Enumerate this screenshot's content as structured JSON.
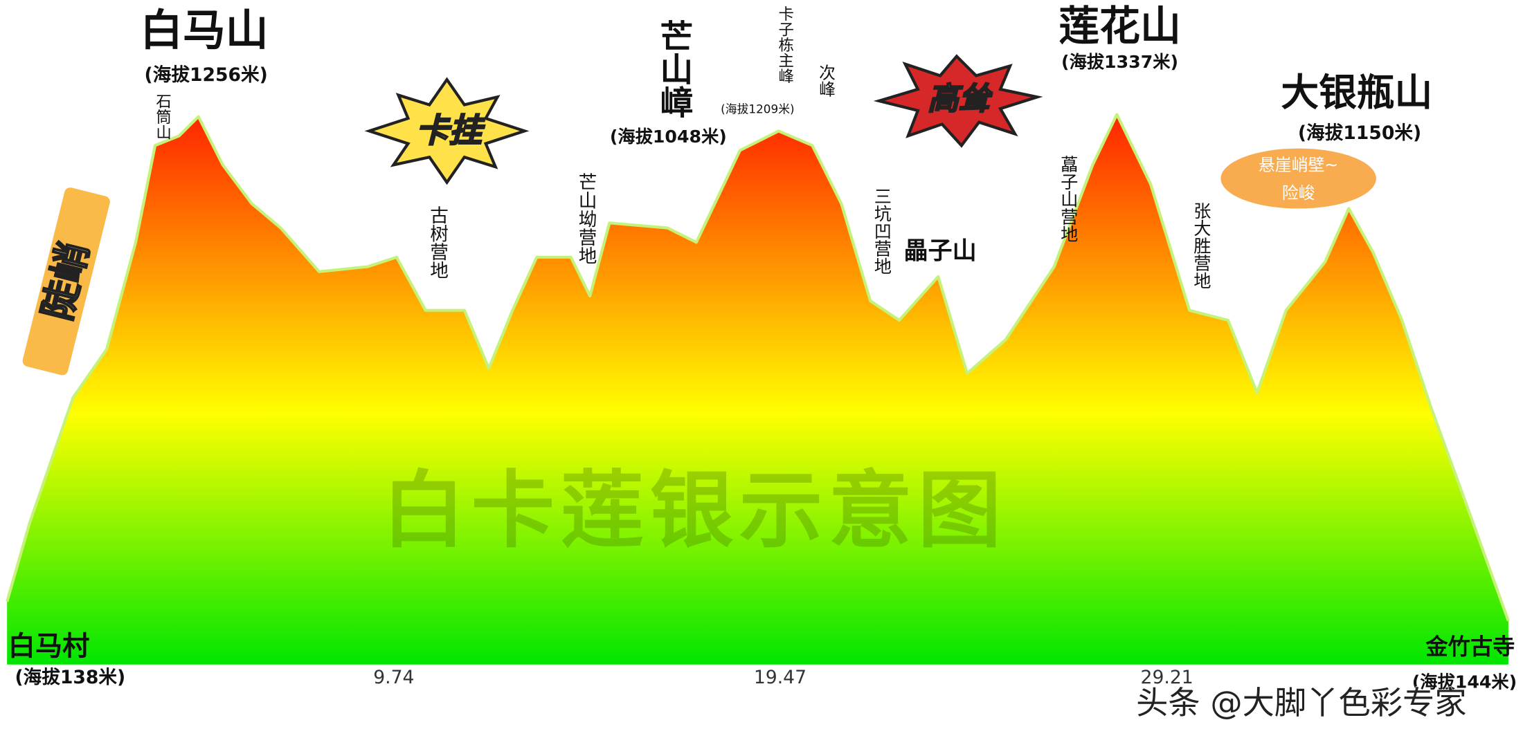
{
  "chart_data": {
    "type": "area",
    "title": "白卡莲银示意图",
    "x": [
      0,
      0.56,
      1.66,
      2.51,
      3.24,
      3.73,
      4.33,
      4.82,
      5.43,
      6.16,
      6.89,
      7.86,
      9.08,
      9.81,
      10.54,
      11.52,
      12.13,
      12.73,
      13.34,
      14.2,
      14.68,
      15.17,
      16.63,
      17.36,
      18.46,
      19.43,
      20.28,
      21.01,
      21.74,
      22.47,
      23.45,
      24.18,
      25.15,
      26.37,
      27.34,
      27.95,
      28.8,
      29.78,
      30.75,
      31.48,
      32.21,
      33.19,
      33.79,
      34.4,
      35.13,
      35.86,
      36.84,
      37.81
    ],
    "values": [
      153,
      341,
      647,
      765,
      1024,
      1259,
      1282,
      1329,
      1212,
      1118,
      1059,
      953,
      965,
      988,
      859,
      859,
      718,
      859,
      988,
      988,
      894,
      1071,
      1059,
      1024,
      1247,
      1294,
      1259,
      1118,
      882,
      835,
      941,
      706,
      788,
      965,
      1212,
      1334,
      1165,
      859,
      835,
      659,
      859,
      976,
      1106,
      1000,
      835,
      624,
      365,
      106
    ],
    "xlim": [
      0,
      38
    ],
    "ylim": [
      0,
      1400
    ],
    "xticks": [
      9.74,
      19.47,
      29.21
    ],
    "colors": [
      "#ff1e00",
      "#ff9900",
      "#ffff00",
      "#00e600"
    ],
    "line_color": "#c6f27a",
    "labels": [
      "白马山",
      "(海拔1256米)",
      "石筒山",
      "卡挂",
      "古树营地",
      "芒山坳营地",
      "芒山嶂",
      "(海拔1048米)",
      "卡子栋主峰",
      "(海拔1209米)",
      "次峰",
      "高耸",
      "三坑凹营地",
      "畾子山",
      "藠子山营地",
      "莲花山",
      "(海拔1337米)",
      "张大胜营地",
      "大银瓶山",
      "(海拔1150米)",
      "悬崖峭壁~",
      "险峻",
      "陡峭",
      "白马村",
      "(海拔138米)",
      "金竹古寺",
      "(海拔144米)",
      "头条 @大脚丫色彩专家"
    ]
  }
}
